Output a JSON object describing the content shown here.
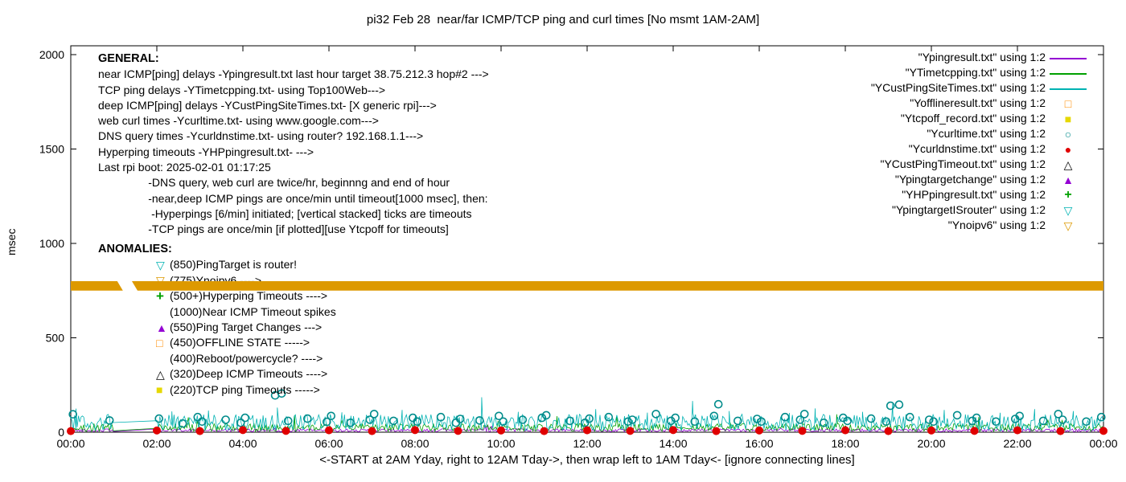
{
  "title": "pi32 Feb 28  near/far ICMP/TCP ping and curl times [No msmt 1AM-2AM]",
  "axes": {
    "ylabel": "msec",
    "xlabel": "<-START at 2AM Yday, right to 12AM Tday->, then wrap left to 1AM Tday<- [ignore connecting lines]",
    "x_ticks": [
      "00:00",
      "02:00",
      "04:00",
      "06:00",
      "08:00",
      "10:00",
      "12:00",
      "14:00",
      "16:00",
      "18:00",
      "20:00",
      "22:00",
      "00:00"
    ],
    "y_ticks": [
      "0",
      "500",
      "1000",
      "1500",
      "2000"
    ]
  },
  "general": {
    "heading": "GENERAL:",
    "lines": [
      "near ICMP[ping] delays -Ypingresult.txt last hour target 38.75.212.3 hop#2 --->",
      "TCP ping delays -YTimetcpping.txt- using Top100Web--->",
      "deep ICMP[ping] delays -YCustPingSiteTimes.txt- [X generic rpi]--->",
      "web curl times -Ycurltime.txt- using www.google.com--->",
      "DNS query times -Ycurldnstime.txt- using router? 192.168.1.1--->",
      "Hyperping timeouts -YHPpingresult.txt- --->",
      "Last rpi boot: 2025-02-01 01:17:25",
      "                -DNS query, web curl are twice/hr, beginnng and end of hour",
      "                -near,deep ICMP pings are once/min until timeout[1000 msec], then:",
      "                 -Hyperpings [6/min] initiated; [vertical stacked] ticks are timeouts",
      "                -TCP pings are once/min [if plotted][use Ytcpoff for timeouts]"
    ]
  },
  "anomalies": {
    "heading": "ANOMALIES:",
    "items": [
      {
        "marker": "triangle-down-open",
        "color": "#00b2b2",
        "text": "(850)PingTarget is router!"
      },
      {
        "marker": "triangle-down-open",
        "color": "#dd9900",
        "text": "(775)Ynoipv6 ---->"
      },
      {
        "marker": "plus",
        "color": "#00a000",
        "text": "(500+)Hyperping Timeouts ---->"
      },
      {
        "marker": "none",
        "color": "#000000",
        "text": "(1000)Near ICMP Timeout spikes"
      },
      {
        "marker": "triangle-up-filled",
        "color": "#9400d3",
        "text": "(550)Ping Target Changes --->"
      },
      {
        "marker": "square-open",
        "color": "#ff8c00",
        "text": "(450)OFFLINE STATE ----->"
      },
      {
        "marker": "none",
        "color": "#000000",
        "text": "(400)Reboot/powercycle? ---->"
      },
      {
        "marker": "triangle-up-open",
        "color": "#000000",
        "text": "(320)Deep ICMP Timeouts ---->"
      },
      {
        "marker": "square-filled",
        "color": "#e6d800",
        "text": "(220)TCP ping Timeouts ----->"
      }
    ]
  },
  "legend": [
    {
      "label": "\"Ypingresult.txt\" using 1:2",
      "sample": "line",
      "color": "#9400d3"
    },
    {
      "label": "\"YTimetcpping.txt\" using 1:2",
      "sample": "line",
      "color": "#00a000"
    },
    {
      "label": "\"YCustPingSiteTimes.txt\" using 1:2",
      "sample": "line",
      "color": "#00b2b2"
    },
    {
      "label": "\"Yofflineresult.txt\" using 1:2",
      "sample": "square-open",
      "color": "#ff8c00"
    },
    {
      "label": "\"Ytcpoff_record.txt\" using 1:2",
      "sample": "square-filled",
      "color": "#e6d800"
    },
    {
      "label": "\"Ycurltime.txt\" using 1:2",
      "sample": "circle-open",
      "color": "#008b8b"
    },
    {
      "label": "\"Ycurldnstime.txt\" using 1:2",
      "sample": "circle-filled",
      "color": "#e00000"
    },
    {
      "label": "\"YCustPingTimeout.txt\" using 1:2",
      "sample": "triangle-up-open",
      "color": "#000000"
    },
    {
      "label": "\"Ypingtargetchange\" using 1:2",
      "sample": "triangle-up-filled",
      "color": "#9400d3"
    },
    {
      "label": "\"YHPpingresult.txt\" using 1:2",
      "sample": "plus",
      "color": "#00a000"
    },
    {
      "label": "\"YpingtargetISrouter\" using 1:2",
      "sample": "triangle-down-open",
      "color": "#00b2b2"
    },
    {
      "label": "\"Ynoipv6\" using 1:2",
      "sample": "triangle-down-open",
      "color": "#dd9900"
    }
  ],
  "chart_data": {
    "type": "line",
    "xlim": [
      0,
      24
    ],
    "ylim": [
      0,
      2000
    ],
    "x_tick_hours": [
      0,
      2,
      4,
      6,
      8,
      10,
      12,
      14,
      16,
      18,
      20,
      22,
      24
    ],
    "y_tick_values": [
      0,
      500,
      1000,
      1500,
      2000
    ],
    "no_measurement_window_hours": [
      1,
      2
    ],
    "band": {
      "name": "Ynoipv6",
      "color": "#dd9900",
      "low_msec": 750,
      "high_msec": 800,
      "gap_hours": [
        1.08,
        1.42
      ]
    },
    "noise_seed": 42,
    "line_series": [
      {
        "name": "Ypingresult.txt",
        "color": "#9400d3",
        "base_msec": [
          2,
          18
        ],
        "spikes": []
      },
      {
        "name": "YTimetcpping.txt",
        "color": "#00a000",
        "base_msec": [
          4,
          45
        ],
        "spikes": [
          [
            5.2,
            90
          ],
          [
            11.3,
            85
          ],
          [
            17.8,
            95
          ],
          [
            21.1,
            80
          ]
        ]
      },
      {
        "name": "YCustPingSiteTimes.txt",
        "color": "#00b2b2",
        "base_msec": [
          8,
          95
        ],
        "spikes": [
          [
            0.12,
            125
          ],
          [
            2.35,
            110
          ],
          [
            3.2,
            115
          ],
          [
            4.8,
            130
          ],
          [
            6.3,
            105
          ],
          [
            7.7,
            118
          ],
          [
            9.55,
            185
          ],
          [
            10.4,
            108
          ],
          [
            12.2,
            122
          ],
          [
            13.4,
            104
          ],
          [
            14.45,
            165
          ],
          [
            15.3,
            112
          ],
          [
            16.7,
            102
          ],
          [
            17.3,
            126
          ],
          [
            18.4,
            108
          ],
          [
            19.1,
            150
          ],
          [
            20.3,
            118
          ],
          [
            21.6,
            103
          ],
          [
            22.4,
            122
          ],
          [
            23.3,
            112
          ]
        ]
      }
    ],
    "scatter_series": [
      {
        "name": "Ycurltime.txt",
        "marker": "circle-open",
        "color": "#008b8b",
        "points": [
          [
            0.05,
            95
          ],
          [
            0.9,
            62
          ],
          [
            2.05,
            72
          ],
          [
            2.6,
            46
          ],
          [
            2.95,
            80
          ],
          [
            3.05,
            56
          ],
          [
            3.6,
            66
          ],
          [
            3.95,
            50
          ],
          [
            4.05,
            76
          ],
          [
            4.75,
            195
          ],
          [
            4.9,
            205
          ],
          [
            5.05,
            60
          ],
          [
            5.5,
            72
          ],
          [
            5.95,
            55
          ],
          [
            6.05,
            86
          ],
          [
            6.5,
            50
          ],
          [
            6.95,
            66
          ],
          [
            7.05,
            96
          ],
          [
            7.5,
            60
          ],
          [
            7.95,
            76
          ],
          [
            8.05,
            56
          ],
          [
            8.6,
            80
          ],
          [
            8.95,
            50
          ],
          [
            9.05,
            70
          ],
          [
            9.5,
            62
          ],
          [
            9.95,
            86
          ],
          [
            10.05,
            56
          ],
          [
            10.5,
            66
          ],
          [
            10.95,
            76
          ],
          [
            11.05,
            90
          ],
          [
            11.6,
            60
          ],
          [
            11.95,
            50
          ],
          [
            12.05,
            72
          ],
          [
            12.5,
            80
          ],
          [
            12.95,
            56
          ],
          [
            13.05,
            66
          ],
          [
            13.6,
            96
          ],
          [
            13.95,
            60
          ],
          [
            14.05,
            76
          ],
          [
            14.5,
            56
          ],
          [
            14.95,
            86
          ],
          [
            15.05,
            148
          ],
          [
            15.5,
            60
          ],
          [
            15.95,
            70
          ],
          [
            16.05,
            56
          ],
          [
            16.6,
            80
          ],
          [
            16.95,
            66
          ],
          [
            17.05,
            96
          ],
          [
            17.5,
            50
          ],
          [
            17.95,
            76
          ],
          [
            18.05,
            60
          ],
          [
            18.6,
            72
          ],
          [
            18.95,
            56
          ],
          [
            19.05,
            140
          ],
          [
            19.25,
            146
          ],
          [
            19.5,
            80
          ],
          [
            19.95,
            66
          ],
          [
            20.05,
            56
          ],
          [
            20.6,
            90
          ],
          [
            20.95,
            60
          ],
          [
            21.05,
            76
          ],
          [
            21.5,
            56
          ],
          [
            21.95,
            70
          ],
          [
            22.05,
            86
          ],
          [
            22.6,
            60
          ],
          [
            22.95,
            96
          ],
          [
            23.05,
            66
          ],
          [
            23.6,
            56
          ],
          [
            23.95,
            80
          ]
        ]
      },
      {
        "name": "Ycurldnstime.txt",
        "marker": "circle-filled",
        "color": "#e00000",
        "points": [
          [
            0,
            6
          ],
          [
            2,
            9
          ],
          [
            3,
            6
          ],
          [
            4,
            11
          ],
          [
            5,
            7
          ],
          [
            6,
            10
          ],
          [
            7,
            6
          ],
          [
            8,
            11
          ],
          [
            9,
            7
          ],
          [
            10,
            9
          ],
          [
            11,
            6
          ],
          [
            12,
            10
          ],
          [
            13,
            7
          ],
          [
            14,
            11
          ],
          [
            15,
            6
          ],
          [
            16,
            9
          ],
          [
            17,
            7
          ],
          [
            18,
            10
          ],
          [
            19,
            6
          ],
          [
            20,
            9
          ],
          [
            21,
            7
          ],
          [
            22,
            10
          ],
          [
            23,
            6
          ],
          [
            24,
            7
          ]
        ]
      }
    ]
  }
}
